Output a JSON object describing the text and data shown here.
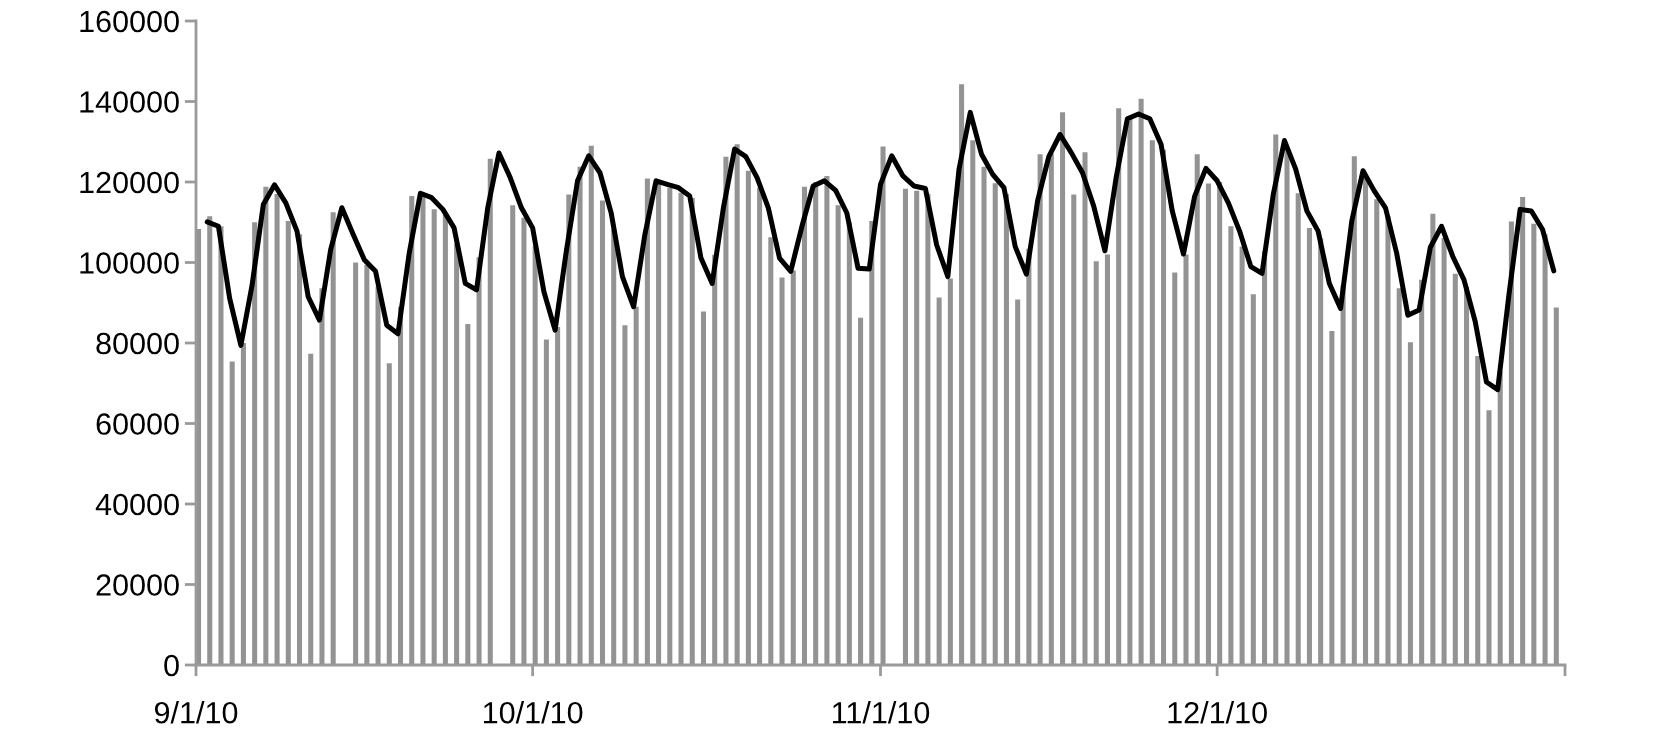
{
  "chart_data": {
    "type": "bar",
    "x": [
      "2010-09-01",
      "2010-09-02",
      "2010-09-03",
      "2010-09-04",
      "2010-09-05",
      "2010-09-06",
      "2010-09-07",
      "2010-09-08",
      "2010-09-09",
      "2010-09-10",
      "2010-09-11",
      "2010-09-12",
      "2010-09-13",
      "2010-09-14",
      "2010-09-15",
      "2010-09-16",
      "2010-09-17",
      "2010-09-18",
      "2010-09-19",
      "2010-09-20",
      "2010-09-21",
      "2010-09-22",
      "2010-09-23",
      "2010-09-24",
      "2010-09-25",
      "2010-09-26",
      "2010-09-27",
      "2010-09-28",
      "2010-09-29",
      "2010-09-30",
      "2010-10-01",
      "2010-10-02",
      "2010-10-03",
      "2010-10-04",
      "2010-10-05",
      "2010-10-06",
      "2010-10-07",
      "2010-10-08",
      "2010-10-09",
      "2010-10-10",
      "2010-10-11",
      "2010-10-12",
      "2010-10-13",
      "2010-10-14",
      "2010-10-15",
      "2010-10-16",
      "2010-10-17",
      "2010-10-18",
      "2010-10-19",
      "2010-10-20",
      "2010-10-21",
      "2010-10-22",
      "2010-10-23",
      "2010-10-24",
      "2010-10-25",
      "2010-10-26",
      "2010-10-27",
      "2010-10-28",
      "2010-10-29",
      "2010-10-30",
      "2010-10-31",
      "2010-11-01",
      "2010-11-02",
      "2010-11-03",
      "2010-11-04",
      "2010-11-05",
      "2010-11-06",
      "2010-11-07",
      "2010-11-08",
      "2010-11-09",
      "2010-11-10",
      "2010-11-11",
      "2010-11-12",
      "2010-11-13",
      "2010-11-14",
      "2010-11-15",
      "2010-11-16",
      "2010-11-17",
      "2010-11-18",
      "2010-11-19",
      "2010-11-20",
      "2010-11-21",
      "2010-11-22",
      "2010-11-23",
      "2010-11-24",
      "2010-11-25",
      "2010-11-26",
      "2010-11-27",
      "2010-11-28",
      "2010-11-29",
      "2010-11-30",
      "2010-12-01",
      "2010-12-02",
      "2010-12-03",
      "2010-12-04",
      "2010-12-05",
      "2010-12-06",
      "2010-12-07",
      "2010-12-08",
      "2010-12-09",
      "2010-12-10",
      "2010-12-11",
      "2010-12-12",
      "2010-12-13",
      "2010-12-14",
      "2010-12-15",
      "2010-12-16",
      "2010-12-17",
      "2010-12-18",
      "2010-12-19",
      "2010-12-20",
      "2010-12-21",
      "2010-12-22",
      "2010-12-23",
      "2010-12-24",
      "2010-12-25",
      "2010-12-26",
      "2010-12-27",
      "2010-12-28",
      "2010-12-29",
      "2010-12-30",
      "2010-12-31"
    ],
    "series": [
      {
        "color": "#939393",
        "values": [
          108300,
          111500,
          109000,
          75400,
          80000,
          110000,
          118800,
          117000,
          110300,
          107000,
          77300,
          93600,
          112500,
          null,
          100000,
          99400,
          94000,
          75000,
          89000,
          116500,
          117000,
          113200,
          112000,
          104700,
          84700,
          101300,
          125800,
          null,
          114200,
          111100,
          104000,
          80900,
          84000,
          116900,
          123800,
          129000,
          115400,
          108300,
          84400,
          89000,
          120900,
          120000,
          118600,
          117300,
          116000,
          87800,
          101900,
          126300,
          129400,
          122800,
          118600,
          106300,
          96300,
          98000,
          118800,
          120000,
          121500,
          114200,
          110000,
          86300,
          110300,
          128800,
          null,
          118300,
          117800,
          117000,
          91300,
          96000,
          144300,
          130400,
          123800,
          119700,
          117000,
          90800,
          103400,
          126900,
          127000,
          137300,
          116900,
          127400,
          100300,
          102000,
          138300,
          136000,
          140700,
          130400,
          128000,
          97500,
          102000,
          126900,
          119600,
          120000,
          109000,
          104000,
          92100,
          102800,
          131800,
          128000,
          117200,
          108600,
          106000,
          83000,
          94300,
          126400,
          121000,
          115700,
          111500,
          93600,
          80200,
          95700,
          112100,
          106100,
          97200,
          94000,
          76800,
          63300,
          73000,
          110200,
          116300,
          109600,
          107000,
          88800
        ]
      },
      {
        "type": "line",
        "color": "#000000",
        "x": [
          "2010-09-02",
          "2010-09-03",
          "2010-09-04",
          "2010-09-05",
          "2010-09-06",
          "2010-09-07",
          "2010-09-08",
          "2010-09-09",
          "2010-09-10",
          "2010-09-11",
          "2010-09-12",
          "2010-09-13",
          "2010-09-14",
          "2010-09-15",
          "2010-09-16",
          "2010-09-17",
          "2010-09-18",
          "2010-09-19",
          "2010-09-20",
          "2010-09-21",
          "2010-09-22",
          "2010-09-23",
          "2010-09-24",
          "2010-09-25",
          "2010-09-26",
          "2010-09-27",
          "2010-09-28",
          "2010-09-29",
          "2010-09-30",
          "2010-10-01",
          "2010-10-02",
          "2010-10-03",
          "2010-10-04",
          "2010-10-05",
          "2010-10-06",
          "2010-10-07",
          "2010-10-08",
          "2010-10-09",
          "2010-10-10",
          "2010-10-11",
          "2010-10-12",
          "2010-10-13",
          "2010-10-14",
          "2010-10-15",
          "2010-10-16",
          "2010-10-17",
          "2010-10-18",
          "2010-10-19",
          "2010-10-20",
          "2010-10-21",
          "2010-10-22",
          "2010-10-23",
          "2010-10-24",
          "2010-10-25",
          "2010-10-26",
          "2010-10-27",
          "2010-10-28",
          "2010-10-29",
          "2010-10-30",
          "2010-10-31",
          "2010-11-01",
          "2010-11-02",
          "2010-11-03",
          "2010-11-04",
          "2010-11-05",
          "2010-11-06",
          "2010-11-07",
          "2010-11-08",
          "2010-11-09",
          "2010-11-10",
          "2010-11-11",
          "2010-11-12",
          "2010-11-13",
          "2010-11-14",
          "2010-11-15",
          "2010-11-16",
          "2010-11-17",
          "2010-11-18",
          "2010-11-19",
          "2010-11-20",
          "2010-11-21",
          "2010-11-22",
          "2010-11-23",
          "2010-11-24",
          "2010-11-25",
          "2010-11-26",
          "2010-11-27",
          "2010-11-28",
          "2010-11-29",
          "2010-11-30",
          "2010-12-01",
          "2010-12-02",
          "2010-12-03",
          "2010-12-04",
          "2010-12-05",
          "2010-12-06",
          "2010-12-07",
          "2010-12-08",
          "2010-12-09",
          "2010-12-10",
          "2010-12-11",
          "2010-12-12",
          "2010-12-13",
          "2010-12-14",
          "2010-12-15",
          "2010-12-16",
          "2010-12-17",
          "2010-12-18",
          "2010-12-19",
          "2010-12-20",
          "2010-12-21",
          "2010-12-22",
          "2010-12-23",
          "2010-12-24",
          "2010-12-25",
          "2010-12-26",
          "2010-12-27",
          "2010-12-28",
          "2010-12-29",
          "2010-12-30",
          "2010-12-31"
        ],
        "values": [
          110100,
          109000,
          91100,
          79400,
          94400,
          114400,
          119300,
          114800,
          107800,
          91500,
          85700,
          103200,
          113600,
          107000,
          100700,
          97800,
          84400,
          82300,
          102300,
          117200,
          116100,
          113200,
          108600,
          94800,
          93200,
          113600,
          127200,
          121100,
          113600,
          108600,
          92800,
          83200,
          102800,
          120300,
          126500,
          122300,
          112300,
          96500,
          89000,
          106900,
          120300,
          119400,
          118600,
          116500,
          101100,
          94800,
          113600,
          128200,
          126300,
          121100,
          113600,
          101100,
          97800,
          109000,
          119000,
          120300,
          117900,
          112300,
          98600,
          98400,
          119400,
          126500,
          121500,
          119000,
          118400,
          104400,
          96500,
          123200,
          137300,
          126900,
          121900,
          118600,
          104000,
          97100,
          115300,
          126300,
          131800,
          127300,
          122300,
          114000,
          102900,
          121100,
          135700,
          136900,
          135700,
          129400,
          112800,
          102100,
          116500,
          123400,
          120300,
          114800,
          107800,
          99000,
          97300,
          116900,
          130300,
          123200,
          112800,
          107800,
          94800,
          88600,
          110300,
          122800,
          117800,
          113600,
          102300,
          86900,
          88200,
          103800,
          109000,
          101500,
          95700,
          85300,
          70300,
          68400,
          91900,
          113200,
          112800,
          108200,
          97900
        ]
      }
    ],
    "xlim": [
      "2010-09-01",
      "2011-01-01"
    ],
    "xticks": [
      {
        "value": "2010-09-01",
        "label": "9/1/10"
      },
      {
        "value": "2010-10-01",
        "label": "10/1/10"
      },
      {
        "value": "2010-11-01",
        "label": "11/1/10"
      },
      {
        "value": "2010-12-01",
        "label": "12/1/10"
      },
      {
        "value": "2011-01-01",
        "label": null
      }
    ],
    "ylim": [
      0,
      160000
    ],
    "yticks": [
      0,
      20000,
      40000,
      60000,
      80000,
      100000,
      120000,
      140000,
      160000
    ],
    "grid": false
  }
}
